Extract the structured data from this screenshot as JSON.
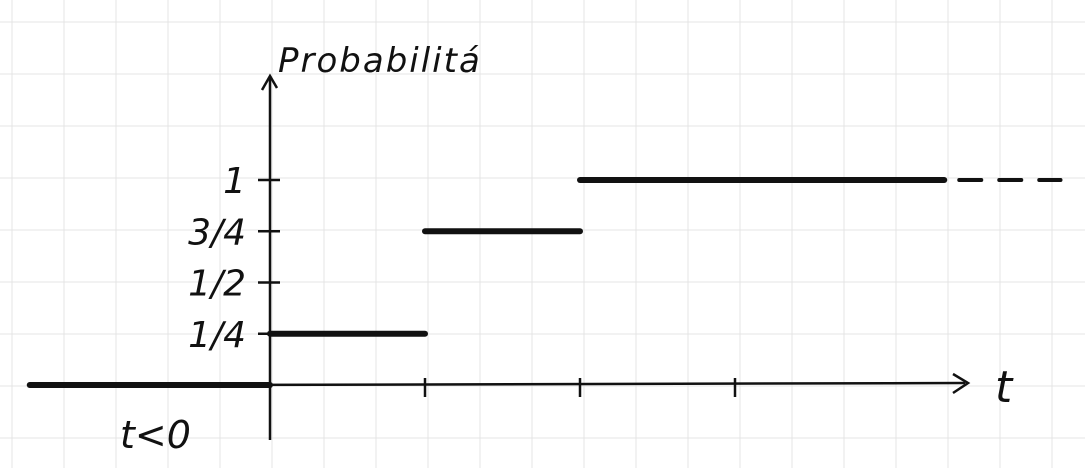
{
  "chart_data": {
    "type": "line",
    "step": true,
    "title": "",
    "ylabel": "Probabilitá",
    "xlabel": "t",
    "y_ticks": [
      {
        "value": 0.25,
        "label": "1/4"
      },
      {
        "value": 0.5,
        "label": "1/2"
      },
      {
        "value": 0.75,
        "label": "3/4"
      },
      {
        "value": 1,
        "label": "1"
      }
    ],
    "x_ticks": [
      1,
      2,
      3
    ],
    "xlim": [
      -1.6,
      4.3
    ],
    "ylim": [
      -0.25,
      1.5
    ],
    "segments": [
      {
        "x0": -1.55,
        "x1": 0,
        "y": 0
      },
      {
        "x0": 0,
        "x1": 1,
        "y": 0.25
      },
      {
        "x0": 1,
        "x1": 2,
        "y": 0.75
      },
      {
        "x0": 2,
        "x1": 4.35,
        "y": 1
      }
    ],
    "continuation": {
      "x0": 4.35,
      "x1": 5.1,
      "y": 1,
      "style": "dashed"
    },
    "annotation": "t<0",
    "colors": {
      "ink": "#111111",
      "grid": "#e4e4e4"
    }
  }
}
